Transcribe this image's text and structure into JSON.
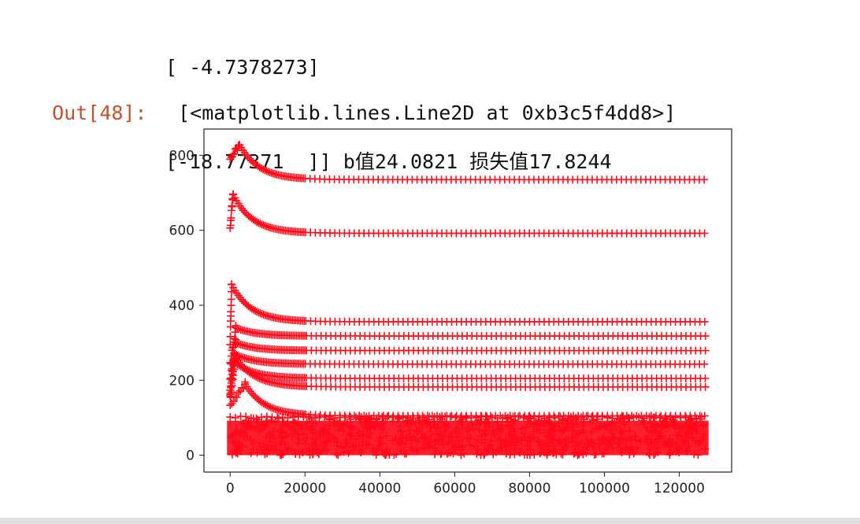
{
  "notebook": {
    "stdout_lines": [
      "[ -4.7378273]",
      "[-18.77371  ]] b值24.0821 损失值17.8244"
    ],
    "out_prompt": "Out[48]:",
    "out_text": "[<matplotlib.lines.Line2D at 0xb3c5f4dd8>]"
  },
  "chart_data": {
    "type": "scatter",
    "marker": "+",
    "color": "#ff0b1b",
    "xlim": [
      -7000,
      134000
    ],
    "ylim": [
      -45,
      870
    ],
    "xticks": [
      0,
      20000,
      40000,
      60000,
      80000,
      100000,
      120000
    ],
    "xtick_labels": [
      "0",
      "20000",
      "40000",
      "60000",
      "80000",
      "100000",
      "120000"
    ],
    "yticks": [
      0,
      200,
      400,
      600,
      800
    ],
    "ytick_labels": [
      "0",
      "200",
      "400",
      "600",
      "800"
    ],
    "x_max": 127000,
    "series": [
      {
        "start": 790,
        "peak": 828,
        "peak_x": 2500,
        "final": 735
      },
      {
        "start": 610,
        "peak": 695,
        "peak_x": 800,
        "final": 592
      },
      {
        "start": 300,
        "peak": 455,
        "peak_x": 400,
        "final": 356
      },
      {
        "start": 240,
        "peak": 340,
        "peak_x": 1500,
        "final": 318
      },
      {
        "start": 200,
        "peak": 300,
        "peak_x": 1500,
        "final": 279
      },
      {
        "start": 180,
        "peak": 270,
        "peak_x": 1200,
        "final": 243
      },
      {
        "start": 160,
        "peak": 250,
        "peak_x": 1000,
        "final": 205
      },
      {
        "start": 150,
        "peak": 260,
        "peak_x": 1500,
        "final": 182
      },
      {
        "start": 130,
        "peak": 190,
        "peak_x": 4000,
        "final": 105
      }
    ],
    "dense_band": {
      "min": 0,
      "max": 100
    }
  }
}
